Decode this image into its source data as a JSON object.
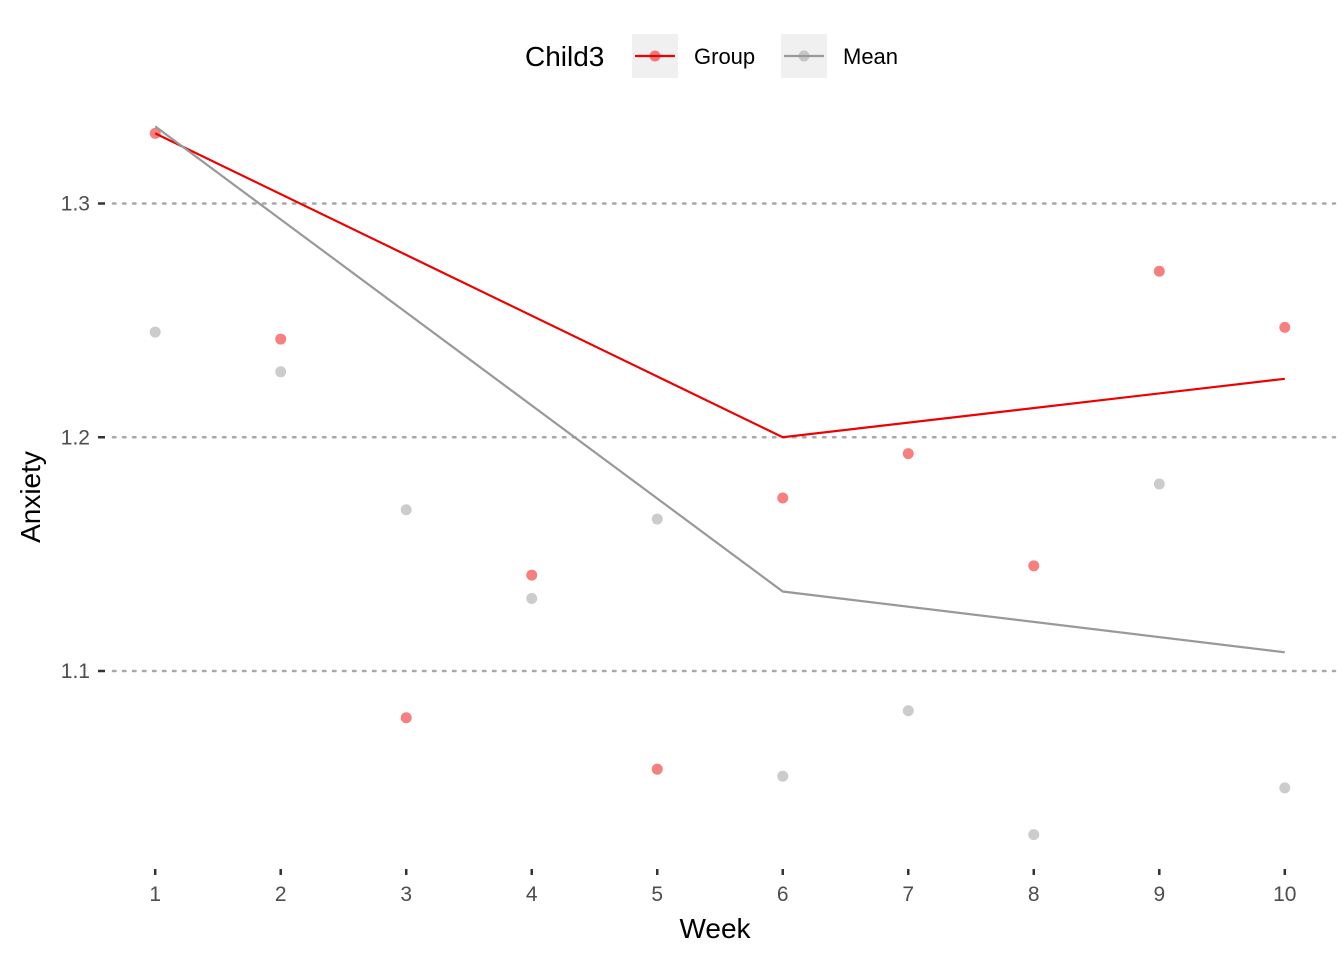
{
  "chart_data": {
    "type": "line",
    "xlabel": "Week",
    "ylabel": "Anxiety",
    "x": [
      1,
      2,
      3,
      4,
      5,
      6,
      7,
      8,
      9,
      10
    ],
    "xlim": [
      0.6,
      10.4
    ],
    "ylim": [
      1.02,
      1.34
    ],
    "yticks": [
      1.1,
      1.2,
      1.3
    ],
    "ytick_labels": [
      "1.1",
      "1.2",
      "1.3"
    ],
    "grid": "horizontal dotted at y ticks",
    "legend": {
      "title": "Child3",
      "position": "top",
      "entries": [
        "Group",
        "Mean"
      ]
    },
    "series": [
      {
        "name": "Group",
        "color": "#ee0000",
        "line_x": [
          1,
          6,
          10
        ],
        "line_y": [
          1.33,
          1.2,
          1.225
        ],
        "points": [
          1.33,
          1.242,
          1.08,
          1.141,
          1.058,
          1.174,
          1.193,
          1.145,
          1.271,
          1.247
        ]
      },
      {
        "name": "Mean",
        "color": "#999999",
        "line_x": [
          1,
          6,
          10
        ],
        "line_y": [
          1.333,
          1.134,
          1.108
        ],
        "points": [
          1.245,
          1.228,
          1.169,
          1.131,
          1.165,
          1.055,
          1.083,
          1.03,
          1.18,
          1.05
        ]
      }
    ]
  }
}
